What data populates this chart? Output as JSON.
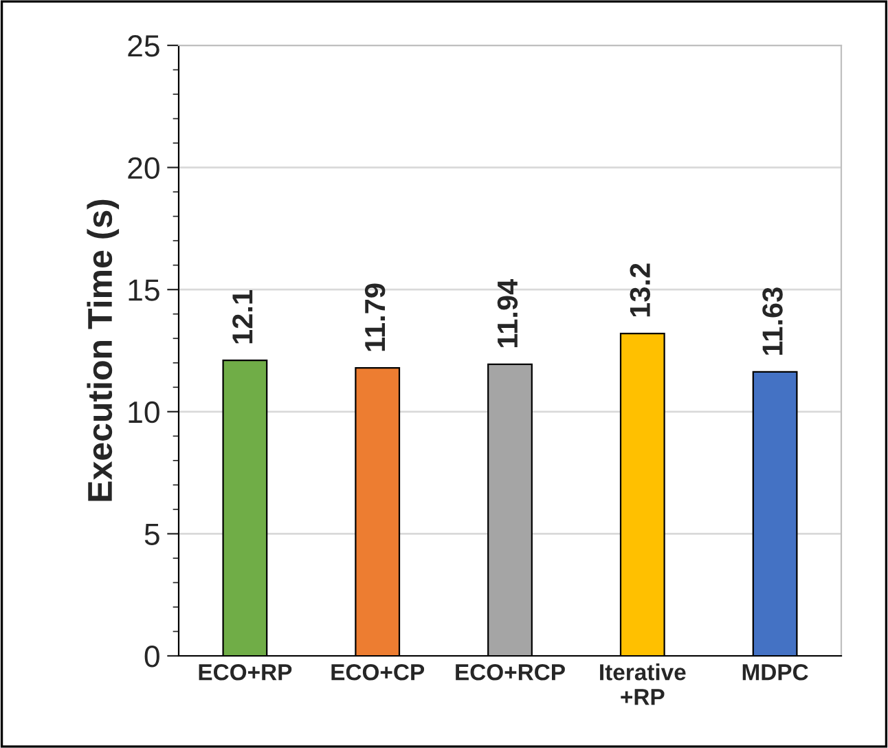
{
  "chart_data": {
    "type": "bar",
    "ylabel": "Execution Time (s)",
    "categories": [
      "ECO+RP",
      "ECO+CP",
      "ECO+RCP",
      "Iterative\n+RP",
      "MDPC"
    ],
    "values": [
      12.1,
      11.79,
      11.94,
      13.2,
      11.63
    ],
    "colors": [
      "#70ad47",
      "#ed7d31",
      "#a5a5a5",
      "#ffc000",
      "#4472c4"
    ],
    "ylim": [
      0,
      25
    ],
    "yticks": [
      0,
      5,
      10,
      15,
      20,
      25
    ],
    "grid": "y",
    "data_labels": true
  }
}
